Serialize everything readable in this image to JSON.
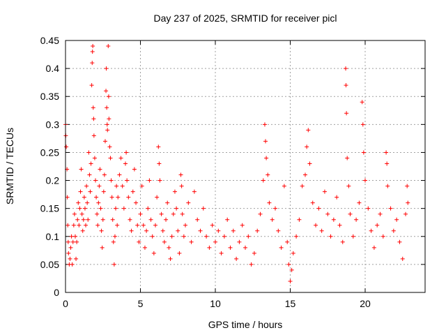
{
  "chart_data": {
    "type": "scatter",
    "title": "Day 237 of 2025, SRMTID for receiver picl",
    "xlabel": "GPS time / hours",
    "ylabel": "SRMTID / TECUs",
    "xlim": [
      0,
      24
    ],
    "ylim": [
      0,
      0.45
    ],
    "x_ticks": [
      0,
      5,
      10,
      15,
      20
    ],
    "y_ticks": [
      0,
      0.05,
      0.1,
      0.15,
      0.2,
      0.25,
      0.3,
      0.35,
      0.4,
      0.45
    ],
    "x_tick_labels": [
      "0",
      "5",
      "10",
      "15",
      "20"
    ],
    "y_tick_labels": [
      "0",
      "0.05",
      "0.1",
      "0.15",
      "0.2",
      "0.25",
      "0.3",
      "0.35",
      "0.4",
      "0.45"
    ],
    "grid": true,
    "marker": "+",
    "color": "#ff0000",
    "series": [
      {
        "name": "SRMTID",
        "points": [
          [
            0.0,
            0.3
          ],
          [
            0.02,
            0.28
          ],
          [
            0.05,
            0.26
          ],
          [
            0.1,
            0.22
          ],
          [
            0.12,
            0.17
          ],
          [
            0.15,
            0.12
          ],
          [
            0.18,
            0.09
          ],
          [
            0.2,
            0.07
          ],
          [
            0.25,
            0.05
          ],
          [
            0.3,
            0.06
          ],
          [
            0.35,
            0.08
          ],
          [
            0.4,
            0.1
          ],
          [
            0.45,
            0.05
          ],
          [
            0.5,
            0.09
          ],
          [
            0.55,
            0.12
          ],
          [
            0.6,
            0.14
          ],
          [
            0.65,
            0.1
          ],
          [
            0.7,
            0.06
          ],
          [
            0.75,
            0.09
          ],
          [
            0.8,
            0.13
          ],
          [
            0.85,
            0.16
          ],
          [
            0.9,
            0.12
          ],
          [
            0.95,
            0.15
          ],
          [
            1.0,
            0.18
          ],
          [
            1.05,
            0.22
          ],
          [
            1.1,
            0.14
          ],
          [
            1.15,
            0.11
          ],
          [
            1.2,
            0.13
          ],
          [
            1.25,
            0.17
          ],
          [
            1.3,
            0.15
          ],
          [
            1.35,
            0.12
          ],
          [
            1.4,
            0.19
          ],
          [
            1.45,
            0.16
          ],
          [
            1.5,
            0.13
          ],
          [
            1.55,
            0.25
          ],
          [
            1.6,
            0.21
          ],
          [
            1.65,
            0.18
          ],
          [
            1.7,
            0.23
          ],
          [
            1.75,
            0.37
          ],
          [
            1.78,
            0.41
          ],
          [
            1.8,
            0.43
          ],
          [
            1.82,
            0.44
          ],
          [
            1.85,
            0.33
          ],
          [
            1.88,
            0.31
          ],
          [
            1.9,
            0.28
          ],
          [
            1.95,
            0.24
          ],
          [
            2.0,
            0.2
          ],
          [
            2.05,
            0.17
          ],
          [
            2.1,
            0.14
          ],
          [
            2.15,
            0.12
          ],
          [
            2.2,
            0.16
          ],
          [
            2.25,
            0.19
          ],
          [
            2.3,
            0.22
          ],
          [
            2.35,
            0.15
          ],
          [
            2.4,
            0.11
          ],
          [
            2.45,
            0.08
          ],
          [
            2.5,
            0.13
          ],
          [
            2.55,
            0.18
          ],
          [
            2.6,
            0.21
          ],
          [
            2.65,
            0.27
          ],
          [
            2.7,
            0.36
          ],
          [
            2.72,
            0.4
          ],
          [
            2.75,
            0.33
          ],
          [
            2.78,
            0.3
          ],
          [
            2.8,
            0.29
          ],
          [
            2.85,
            0.44
          ],
          [
            2.88,
            0.35
          ],
          [
            2.9,
            0.31
          ],
          [
            2.95,
            0.26
          ],
          [
            3.0,
            0.24
          ],
          [
            3.05,
            0.2
          ],
          [
            3.1,
            0.17
          ],
          [
            3.15,
            0.13
          ],
          [
            3.2,
            0.09
          ],
          [
            3.25,
            0.05
          ],
          [
            3.3,
            0.1
          ],
          [
            3.35,
            0.15
          ],
          [
            3.4,
            0.19
          ],
          [
            3.45,
            0.12
          ],
          [
            3.5,
            0.17
          ],
          [
            3.6,
            0.21
          ],
          [
            3.7,
            0.24
          ],
          [
            3.8,
            0.19
          ],
          [
            3.9,
            0.15
          ],
          [
            4.0,
            0.23
          ],
          [
            4.05,
            0.25
          ],
          [
            4.1,
            0.2
          ],
          [
            4.2,
            0.17
          ],
          [
            4.3,
            0.13
          ],
          [
            4.4,
            0.11
          ],
          [
            4.5,
            0.18
          ],
          [
            4.6,
            0.22
          ],
          [
            4.7,
            0.16
          ],
          [
            4.8,
            0.12
          ],
          [
            4.9,
            0.09
          ],
          [
            5.0,
            0.14
          ],
          [
            5.1,
            0.19
          ],
          [
            5.2,
            0.12
          ],
          [
            5.3,
            0.08
          ],
          [
            5.4,
            0.11
          ],
          [
            5.5,
            0.15
          ],
          [
            5.6,
            0.2
          ],
          [
            5.7,
            0.13
          ],
          [
            5.8,
            0.1
          ],
          [
            5.9,
            0.07
          ],
          [
            6.0,
            0.12
          ],
          [
            6.1,
            0.17
          ],
          [
            6.2,
            0.26
          ],
          [
            6.25,
            0.23
          ],
          [
            6.3,
            0.2
          ],
          [
            6.4,
            0.14
          ],
          [
            6.5,
            0.11
          ],
          [
            6.6,
            0.09
          ],
          [
            6.7,
            0.13
          ],
          [
            6.8,
            0.16
          ],
          [
            6.9,
            0.08
          ],
          [
            7.0,
            0.06
          ],
          [
            7.1,
            0.1
          ],
          [
            7.2,
            0.14
          ],
          [
            7.3,
            0.18
          ],
          [
            7.4,
            0.15
          ],
          [
            7.5,
            0.11
          ],
          [
            7.6,
            0.07
          ],
          [
            7.7,
            0.21
          ],
          [
            7.75,
            0.19
          ],
          [
            7.8,
            0.14
          ],
          [
            7.9,
            0.1
          ],
          [
            8.0,
            0.12
          ],
          [
            8.2,
            0.16
          ],
          [
            8.4,
            0.09
          ],
          [
            8.6,
            0.18
          ],
          [
            8.8,
            0.13
          ],
          [
            9.0,
            0.11
          ],
          [
            9.2,
            0.15
          ],
          [
            9.4,
            0.1
          ],
          [
            9.6,
            0.08
          ],
          [
            9.8,
            0.12
          ],
          [
            10.0,
            0.09
          ],
          [
            10.2,
            0.11
          ],
          [
            10.4,
            0.07
          ],
          [
            10.6,
            0.1
          ],
          [
            10.8,
            0.13
          ],
          [
            11.0,
            0.08
          ],
          [
            11.2,
            0.11
          ],
          [
            11.4,
            0.06
          ],
          [
            11.6,
            0.09
          ],
          [
            11.8,
            0.12
          ],
          [
            12.0,
            0.08
          ],
          [
            12.2,
            0.1
          ],
          [
            12.4,
            0.05
          ],
          [
            12.6,
            0.07
          ],
          [
            12.8,
            0.11
          ],
          [
            13.0,
            0.14
          ],
          [
            13.2,
            0.2
          ],
          [
            13.3,
            0.3
          ],
          [
            13.35,
            0.27
          ],
          [
            13.4,
            0.24
          ],
          [
            13.5,
            0.21
          ],
          [
            13.6,
            0.16
          ],
          [
            13.8,
            0.13
          ],
          [
            14.0,
            0.15
          ],
          [
            14.2,
            0.11
          ],
          [
            14.4,
            0.08
          ],
          [
            14.6,
            0.19
          ],
          [
            14.8,
            0.09
          ],
          [
            14.9,
            0.05
          ],
          [
            15.0,
            0.02
          ],
          [
            15.1,
            0.04
          ],
          [
            15.2,
            0.07
          ],
          [
            15.4,
            0.1
          ],
          [
            15.6,
            0.13
          ],
          [
            15.8,
            0.19
          ],
          [
            16.0,
            0.21
          ],
          [
            16.1,
            0.26
          ],
          [
            16.2,
            0.29
          ],
          [
            16.3,
            0.23
          ],
          [
            16.5,
            0.16
          ],
          [
            16.7,
            0.12
          ],
          [
            16.9,
            0.15
          ],
          [
            17.1,
            0.11
          ],
          [
            17.3,
            0.18
          ],
          [
            17.5,
            0.14
          ],
          [
            17.7,
            0.1
          ],
          [
            17.9,
            0.13
          ],
          [
            18.1,
            0.17
          ],
          [
            18.3,
            0.12
          ],
          [
            18.5,
            0.09
          ],
          [
            18.7,
            0.4
          ],
          [
            18.72,
            0.37
          ],
          [
            18.75,
            0.32
          ],
          [
            18.8,
            0.24
          ],
          [
            18.9,
            0.19
          ],
          [
            19.0,
            0.14
          ],
          [
            19.2,
            0.1
          ],
          [
            19.4,
            0.13
          ],
          [
            19.6,
            0.16
          ],
          [
            19.8,
            0.34
          ],
          [
            19.85,
            0.3
          ],
          [
            19.9,
            0.25
          ],
          [
            20.0,
            0.2
          ],
          [
            20.2,
            0.15
          ],
          [
            20.4,
            0.11
          ],
          [
            20.6,
            0.08
          ],
          [
            20.8,
            0.12
          ],
          [
            21.0,
            0.14
          ],
          [
            21.2,
            0.1
          ],
          [
            21.4,
            0.25
          ],
          [
            21.45,
            0.23
          ],
          [
            21.5,
            0.19
          ],
          [
            21.7,
            0.15
          ],
          [
            21.9,
            0.11
          ],
          [
            22.1,
            0.13
          ],
          [
            22.3,
            0.09
          ],
          [
            22.5,
            0.06
          ],
          [
            22.7,
            0.14
          ],
          [
            22.8,
            0.19
          ],
          [
            22.85,
            0.16
          ]
        ]
      }
    ]
  }
}
